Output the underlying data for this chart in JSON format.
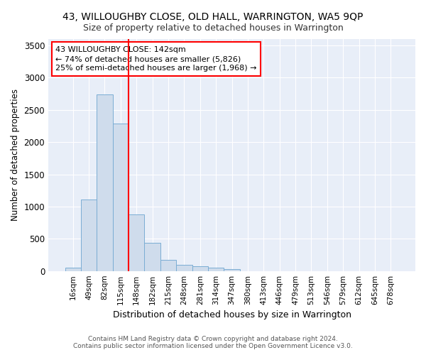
{
  "title": "43, WILLOUGHBY CLOSE, OLD HALL, WARRINGTON, WA5 9QP",
  "subtitle": "Size of property relative to detached houses in Warrington",
  "xlabel": "Distribution of detached houses by size in Warrington",
  "ylabel": "Number of detached properties",
  "bar_color": "#cfdcec",
  "bar_edge_color": "#7aadd4",
  "background_color": "#e8eef8",
  "grid_color": "#ffffff",
  "categories": [
    "16sqm",
    "49sqm",
    "82sqm",
    "115sqm",
    "148sqm",
    "182sqm",
    "215sqm",
    "248sqm",
    "281sqm",
    "314sqm",
    "347sqm",
    "380sqm",
    "413sqm",
    "446sqm",
    "479sqm",
    "513sqm",
    "546sqm",
    "579sqm",
    "612sqm",
    "645sqm",
    "678sqm"
  ],
  "values": [
    50,
    1110,
    2740,
    2290,
    880,
    435,
    175,
    100,
    75,
    50,
    30,
    0,
    0,
    0,
    0,
    0,
    0,
    0,
    0,
    0,
    0
  ],
  "ylim": [
    0,
    3600
  ],
  "yticks": [
    0,
    500,
    1000,
    1500,
    2000,
    2500,
    3000,
    3500
  ],
  "red_line_x": 3.5,
  "annotation_text": "43 WILLOUGHBY CLOSE: 142sqm\n← 74% of detached houses are smaller (5,826)\n25% of semi-detached houses are larger (1,968) →",
  "footer_text": "Contains HM Land Registry data © Crown copyright and database right 2024.\nContains public sector information licensed under the Open Government Licence v3.0."
}
